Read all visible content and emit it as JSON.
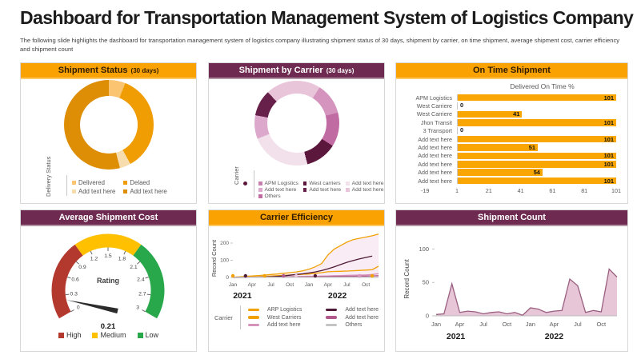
{
  "page": {
    "title": "Dashboard for Transportation Management System of Logistics Company",
    "subtitle": "The following slide highlights the dashboard for transportation management system of logistics company illustrating shipment status of 30 days, shipment by carrier, on time shipment, average shipment cost, carrier efficiency and shipment count"
  },
  "colors": {
    "header_orange": "#F9A201",
    "header_purple": "#6E2A50",
    "bar_orange": "#F9A602"
  },
  "chart_data": [
    {
      "id": "shipment-status",
      "type": "pie",
      "donut": true,
      "title": "Shipment Status",
      "title_suffix": "(30 days)",
      "axis_label": "Delivery Status",
      "slices": [
        {
          "label": "Delivered",
          "value": 6,
          "color": "#FBC471"
        },
        {
          "label": "Delaed",
          "value": 36,
          "color": "#F09D03"
        },
        {
          "label": "Add text here",
          "value": 4,
          "color": "#F7DCAE"
        },
        {
          "label": "Add text here",
          "value": 54,
          "color": "#DE8E04"
        }
      ],
      "legend": [
        {
          "label": "Delivered",
          "color": "#FBC471"
        },
        {
          "label": "Delaed",
          "color": "#F09D03"
        },
        {
          "label": "Add text here",
          "color": "#F7DCAE"
        },
        {
          "label": "Add text here",
          "color": "#DE8E04"
        }
      ]
    },
    {
      "id": "shipment-by-carrier",
      "type": "pie",
      "donut": true,
      "title": "Shipment by Carrier",
      "title_suffix": "(30 days)",
      "axis_label": "Carrier",
      "slices": [
        {
          "label": "Add text here",
          "value": 9,
          "color": "#E9C5DA"
        },
        {
          "label": "APM Logistics",
          "value": 12,
          "color": "#D494BD"
        },
        {
          "label": "Others",
          "value": 13,
          "color": "#C06CA3"
        },
        {
          "label": "West carriers",
          "value": 12,
          "color": "#5C173C"
        },
        {
          "label": "Add text here",
          "value": 23,
          "color": "#F2E0EB"
        },
        {
          "label": "Add text here",
          "value": 9,
          "color": "#DCA9CC"
        },
        {
          "label": "Add text here",
          "value": 10,
          "color": "#662049"
        },
        {
          "label": "Add text here",
          "value": 12,
          "color": "#E9C5DA"
        }
      ],
      "legend": [
        {
          "label": "APM Logistics",
          "color": "#C77FAD"
        },
        {
          "label": "West carriers",
          "color": "#5C173C"
        },
        {
          "label": "Add text here",
          "color": "#F2E0EB"
        },
        {
          "label": "Add text here",
          "color": "#DCA9CC"
        },
        {
          "label": "Add text here",
          "color": "#662049"
        },
        {
          "label": "Add text here",
          "color": "#E9C5DA"
        },
        {
          "label": "Others",
          "color": "#C06CA3"
        }
      ]
    },
    {
      "id": "on-time-shipment",
      "type": "bar",
      "orientation": "horizontal",
      "title": "On Time Shipment",
      "title_suffix": "",
      "subtitle": "Delivered On Time %",
      "categories": [
        "APM Logistics",
        "West Carriere",
        "West Carriere",
        "Jhon Transit",
        "3 Transport",
        "Add text here",
        "Add text here",
        "Add text here",
        "Add text here",
        "Add text here",
        "Add text here"
      ],
      "values": [
        101,
        0,
        41,
        101,
        0,
        101,
        51,
        101,
        101,
        54,
        101
      ],
      "bar_color": "#F9A602",
      "x_ticks": [
        "-19",
        "1",
        "21",
        "41",
        "61",
        "81",
        "101"
      ],
      "x_range": [
        1,
        101
      ]
    },
    {
      "id": "average-shipment-cost",
      "type": "gauge",
      "title": "Average Shipment Cost",
      "title_suffix": "",
      "min": 0,
      "max": 3,
      "tick_step": 0.3,
      "ticks": [
        "0",
        "0.3",
        "0.6",
        "0.9",
        "1.2",
        "1.5",
        "1.8",
        "2.1",
        "2.4",
        "2.7",
        "3"
      ],
      "value": 0.21,
      "value_label": "0.21",
      "center_label": "Rating",
      "zones": [
        {
          "label": "High",
          "from": 0,
          "to": 1.05,
          "color": "#B3392F"
        },
        {
          "label": "Medium",
          "from": 1.05,
          "to": 1.95,
          "color": "#FFC000"
        },
        {
          "label": "Low",
          "from": 1.95,
          "to": 3,
          "color": "#29A84B"
        }
      ]
    },
    {
      "id": "carrier-efficiency",
      "type": "line",
      "title": "Carrier Efficiency",
      "title_suffix": "",
      "ylabel": "Record Count",
      "y_ticks": [
        0,
        100,
        200
      ],
      "y_max": 265,
      "x_tick_labels": [
        "Jan",
        "Apr",
        "Jul",
        "Oct",
        "Jan",
        "Apr",
        "Jul",
        "Oct"
      ],
      "year_labels": [
        "2021",
        "2022"
      ],
      "legend_label": "Carrier",
      "area_fill": "#F9ECF4",
      "series": [
        {
          "name": "ARP Logistics",
          "color": "#F2A104",
          "values": [
            2,
            4,
            6,
            9,
            11,
            14,
            17,
            20,
            24,
            28,
            32,
            38,
            48,
            62,
            80,
            130,
            165,
            185,
            205,
            220,
            228,
            235,
            242,
            252
          ]
        },
        {
          "name": "West Carriers",
          "color": "#F2A104",
          "values": [
            1,
            2,
            3,
            4,
            5,
            6,
            8,
            10,
            12,
            14,
            16,
            18,
            20,
            24,
            28,
            33,
            35,
            36,
            37,
            39,
            41,
            43,
            45,
            65
          ]
        },
        {
          "name": "Add text here",
          "color": "#D693BC",
          "values": [
            1,
            1,
            2,
            2,
            3,
            3,
            4,
            4,
            5,
            5,
            6,
            6,
            7,
            7,
            8,
            9,
            10,
            11,
            12,
            13,
            14,
            15,
            17,
            22
          ]
        },
        {
          "name": "Add text here",
          "color": "#4F1A38",
          "values": [
            0,
            0,
            1,
            1,
            2,
            3,
            4,
            6,
            9,
            13,
            17,
            21,
            26,
            32,
            40,
            50,
            62,
            75,
            88,
            98,
            108,
            116,
            124,
            null
          ]
        },
        {
          "name": "Add text here",
          "color": "#B0578C",
          "values": [
            0,
            0,
            0,
            1,
            1,
            1,
            2,
            2,
            2,
            3,
            3,
            3,
            4,
            4,
            5,
            5,
            6,
            6,
            7,
            7,
            8,
            8,
            9,
            10
          ]
        },
        {
          "name": "Others",
          "color": "#C4C4C4",
          "values": [
            1,
            1,
            1,
            1,
            1,
            1,
            1,
            1,
            1,
            1,
            1,
            1,
            1,
            1,
            1,
            1,
            1,
            1,
            1,
            1,
            1,
            1,
            1,
            1
          ]
        }
      ],
      "markers": [
        {
          "x": 0,
          "color": "#F2A104"
        },
        {
          "x": 2,
          "color": "#4F1A38"
        },
        {
          "x": 5,
          "color": "#F2A104"
        },
        {
          "x": 8,
          "color": "#B0578C"
        },
        {
          "x": 10,
          "color": "#E8C7DA"
        },
        {
          "x": 13,
          "color": "#4F1A38"
        },
        {
          "x": 20,
          "color": "#D693BC"
        },
        {
          "x": 22,
          "color": "#F2A104"
        }
      ]
    },
    {
      "id": "shipment-count",
      "type": "area",
      "title": "Shipment Count",
      "title_suffix": "",
      "ylabel": "Record Count",
      "y_ticks": [
        0,
        50,
        100
      ],
      "y_max": 110,
      "x_tick_labels": [
        "Jan",
        "Apr",
        "Jul",
        "Oct",
        "Jan",
        "Apr",
        "Jul",
        "Oct"
      ],
      "year_labels": [
        "2021",
        "2022"
      ],
      "fill": "#E6C6D7",
      "stroke": "#9A5F80",
      "values": [
        2,
        3,
        48,
        5,
        7,
        6,
        3,
        5,
        6,
        3,
        5,
        1,
        12,
        10,
        5,
        7,
        8,
        55,
        45,
        5,
        8,
        6,
        70,
        58
      ]
    }
  ]
}
